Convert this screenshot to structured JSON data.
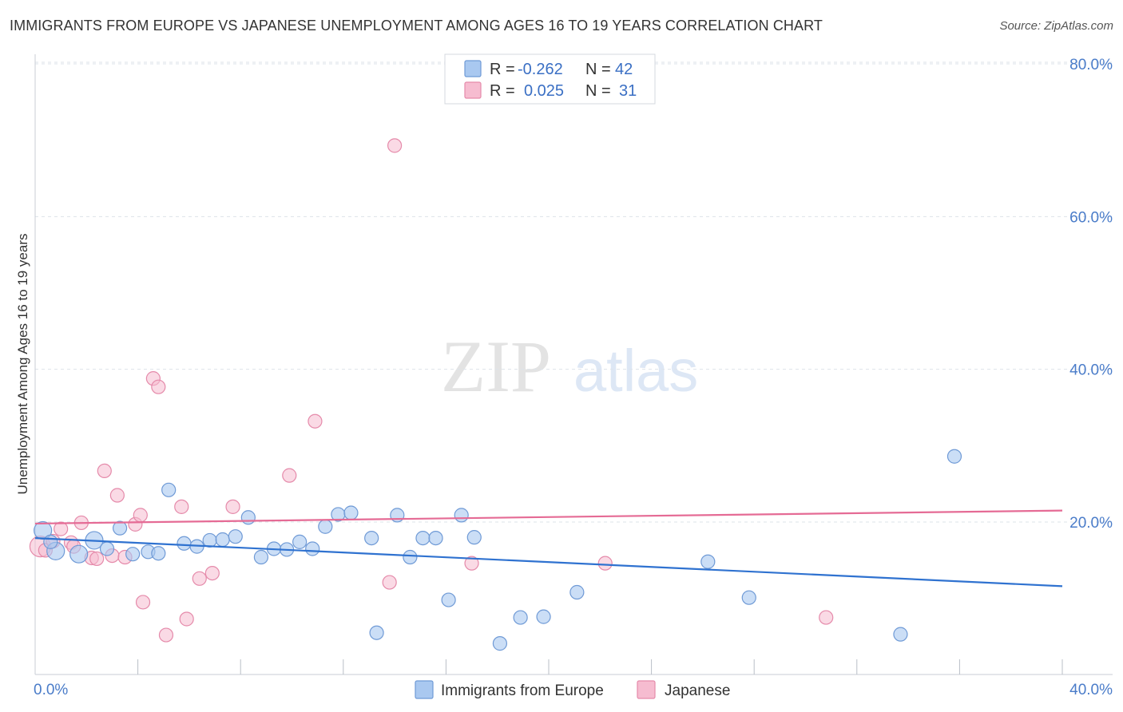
{
  "title": "IMMIGRANTS FROM EUROPE VS JAPANESE UNEMPLOYMENT AMONG AGES 16 TO 19 YEARS CORRELATION CHART",
  "source": "Source: ZipAtlas.com",
  "watermark": {
    "zip": "ZIP",
    "atlas": "atlas"
  },
  "colors": {
    "europe_fill": "#a9c8f0",
    "europe_stroke": "#6f9ad6",
    "europe_line": "#2f72d0",
    "japanese_fill": "#f6bcd0",
    "japanese_stroke": "#e58aaa",
    "japanese_line": "#e56b95",
    "grid": "#dde3ea",
    "tick_text": "#4a7cc9"
  },
  "legend": {
    "europe": {
      "r_label": "R =",
      "r_value": "-0.262",
      "n_label": "N =",
      "n_value": "42"
    },
    "japanese": {
      "r_label": "R =",
      "r_value": "0.025",
      "n_label": "N =",
      "n_value": "31"
    }
  },
  "chart_data": {
    "type": "scatter",
    "title": "IMMIGRANTS FROM EUROPE VS JAPANESE UNEMPLOYMENT AMONG AGES 16 TO 19 YEARS CORRELATION CHART",
    "xlabel": "",
    "ylabel": "Unemployment Among Ages 16 to 19 years",
    "xlim": [
      0,
      40
    ],
    "ylim": [
      0,
      82
    ],
    "x_tick_labels": [
      "0.0%",
      "40.0%"
    ],
    "y_ticks": [
      20,
      40,
      60,
      80
    ],
    "y_tick_labels": [
      "20.0%",
      "40.0%",
      "60.0%",
      "80.0%"
    ],
    "grid": true,
    "legend_position": "top-center",
    "series": [
      {
        "name": "Immigrants from Europe",
        "r": -0.262,
        "n": 42,
        "trend": {
          "x": [
            0,
            40
          ],
          "y": [
            17.9,
            11.6
          ]
        },
        "points": [
          [
            0.3,
            18.9
          ],
          [
            0.8,
            16.2
          ],
          [
            1.7,
            15.8
          ],
          [
            2.3,
            17.6
          ],
          [
            2.8,
            16.5
          ],
          [
            3.3,
            19.2
          ],
          [
            3.8,
            15.8
          ],
          [
            4.4,
            16.1
          ],
          [
            4.8,
            15.9
          ],
          [
            5.2,
            24.2
          ],
          [
            5.8,
            17.2
          ],
          [
            6.3,
            16.8
          ],
          [
            6.8,
            17.6
          ],
          [
            7.3,
            17.7
          ],
          [
            7.8,
            18.1
          ],
          [
            8.3,
            20.6
          ],
          [
            8.8,
            15.4
          ],
          [
            9.3,
            16.5
          ],
          [
            9.8,
            16.4
          ],
          [
            10.3,
            17.4
          ],
          [
            10.8,
            16.5
          ],
          [
            11.3,
            19.4
          ],
          [
            11.8,
            21.0
          ],
          [
            12.3,
            21.2
          ],
          [
            13.1,
            17.9
          ],
          [
            13.3,
            5.5
          ],
          [
            14.1,
            20.9
          ],
          [
            14.6,
            15.4
          ],
          [
            15.1,
            17.9
          ],
          [
            15.6,
            17.9
          ],
          [
            16.1,
            9.8
          ],
          [
            16.6,
            20.9
          ],
          [
            17.1,
            18.0
          ],
          [
            18.1,
            4.1
          ],
          [
            18.9,
            7.5
          ],
          [
            19.8,
            7.6
          ],
          [
            21.1,
            10.8
          ],
          [
            26.2,
            14.8
          ],
          [
            27.8,
            10.1
          ],
          [
            33.7,
            5.3
          ],
          [
            35.8,
            28.6
          ],
          [
            0.6,
            17.4
          ]
        ]
      },
      {
        "name": "Japanese",
        "r": 0.025,
        "n": 31,
        "trend": {
          "x": [
            0,
            40
          ],
          "y": [
            19.8,
            21.5
          ]
        },
        "points": [
          [
            0.2,
            16.8
          ],
          [
            0.4,
            16.3
          ],
          [
            0.7,
            17.5
          ],
          [
            1.0,
            19.1
          ],
          [
            1.4,
            17.3
          ],
          [
            1.8,
            19.9
          ],
          [
            2.2,
            15.3
          ],
          [
            2.4,
            15.2
          ],
          [
            2.7,
            26.7
          ],
          [
            3.0,
            15.6
          ],
          [
            3.2,
            23.5
          ],
          [
            3.5,
            15.4
          ],
          [
            3.9,
            19.7
          ],
          [
            4.1,
            20.9
          ],
          [
            4.2,
            9.5
          ],
          [
            4.6,
            38.8
          ],
          [
            4.8,
            37.7
          ],
          [
            5.1,
            5.2
          ],
          [
            5.7,
            22.0
          ],
          [
            5.9,
            7.3
          ],
          [
            6.4,
            12.6
          ],
          [
            6.9,
            13.3
          ],
          [
            7.7,
            22.0
          ],
          [
            9.9,
            26.1
          ],
          [
            10.9,
            33.2
          ],
          [
            14.0,
            69.3
          ],
          [
            13.8,
            12.1
          ],
          [
            17.0,
            14.6
          ],
          [
            22.2,
            14.6
          ],
          [
            30.8,
            7.5
          ],
          [
            1.5,
            16.8
          ]
        ]
      }
    ]
  },
  "bottom_legend": {
    "europe": "Immigrants from Europe",
    "japanese": "Japanese"
  }
}
